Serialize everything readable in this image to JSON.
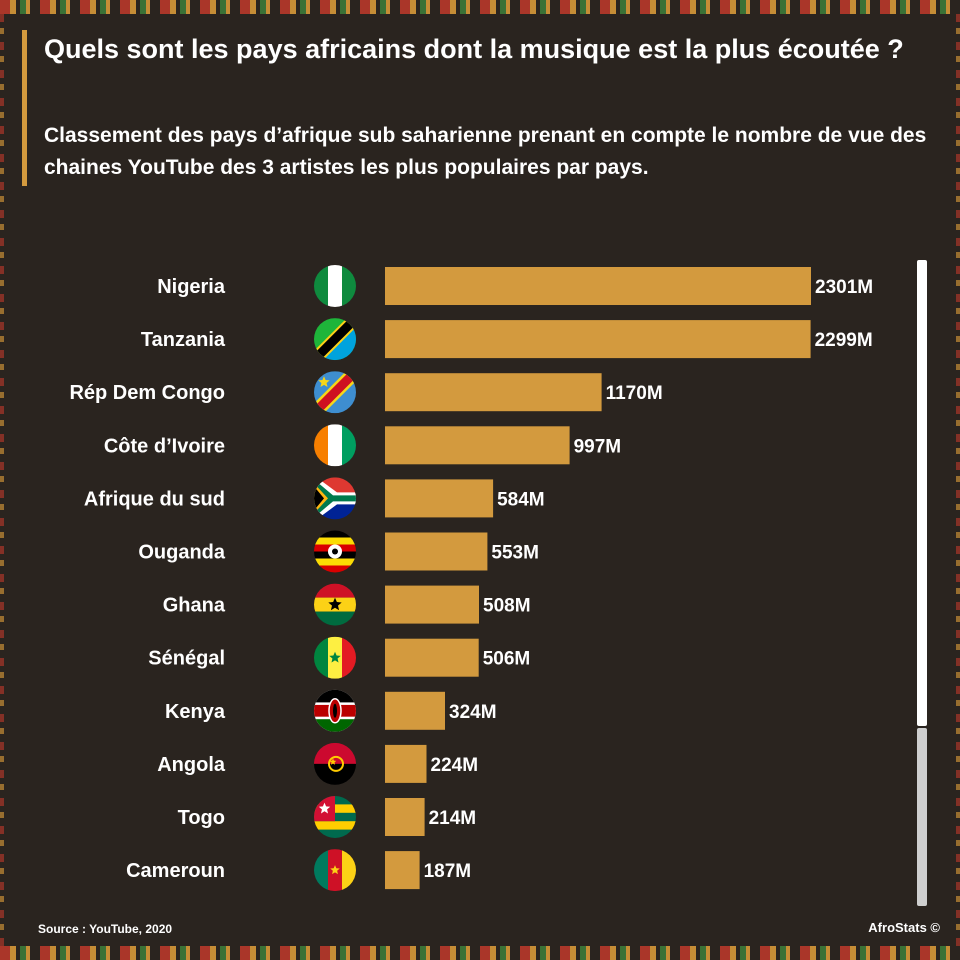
{
  "header": {
    "title": "Quels sont les pays africains dont la musique est la plus écoutée ?",
    "subtitle": "Classement des pays d’afrique sub saharienne prenant en compte le nombre de vue des chaines YouTube des 3 artistes les plus populaires par pays."
  },
  "footer": {
    "source": "Source : YouTube, 2020",
    "brand": "AfroStats ©"
  },
  "colors": {
    "bar": "#d39a3e",
    "background": "#2a241f",
    "text": "#ffffff"
  },
  "chart_data": {
    "type": "bar",
    "orientation": "horizontal",
    "title": "",
    "xlabel": "",
    "ylabel": "",
    "unit_suffix": "M",
    "xlim": [
      0,
      2301
    ],
    "grid": false,
    "categories": [
      "Nigeria",
      "Tanzania",
      "Rép Dem Congo",
      "Côte d’Ivoire",
      "Afrique du sud",
      "Ouganda",
      "Ghana",
      "Sénégal",
      "Kenya",
      "Angola",
      "Togo",
      "Cameroun"
    ],
    "values": [
      2301,
      2299,
      1170,
      997,
      584,
      553,
      508,
      506,
      324,
      224,
      214,
      187
    ],
    "data_labels": [
      "2301M",
      "2299M",
      "1170M",
      "997M",
      "584M",
      "553M",
      "508M",
      "506M",
      "324M",
      "224M",
      "214M",
      "187M"
    ],
    "flags": [
      "nigeria-flag-icon",
      "tanzania-flag-icon",
      "drc-flag-icon",
      "cote-divoire-flag-icon",
      "south-africa-flag-icon",
      "uganda-flag-icon",
      "ghana-flag-icon",
      "senegal-flag-icon",
      "kenya-flag-icon",
      "angola-flag-icon",
      "togo-flag-icon",
      "cameroon-flag-icon"
    ]
  }
}
